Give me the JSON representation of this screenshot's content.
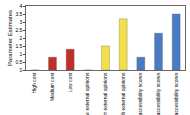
{
  "chart_data": {
    "type": "bar",
    "y_label": "Parameter Estimates",
    "categories": [
      "High cost",
      "Medium cost",
      "Low cost",
      "Low external opinions",
      "Medium external opinions",
      "High external opinions",
      "Low accessibility scores",
      "Medium accessibility scores",
      "High accessibility scores"
    ],
    "values": [
      0,
      0.8,
      1.3,
      0,
      1.5,
      3.2,
      0.8,
      2.3,
      3.5
    ],
    "colors": [
      "#c0302a",
      "#c0302a",
      "#c0302a",
      "#f2e04a",
      "#f2e04a",
      "#f2e04a",
      "#4a7cc4",
      "#4a7cc4",
      "#4a7cc4"
    ],
    "ylim": [
      0,
      4
    ],
    "yticks": [
      0,
      0.5,
      1,
      1.5,
      2,
      2.5,
      3,
      3.5,
      4
    ],
    "grid": false
  }
}
